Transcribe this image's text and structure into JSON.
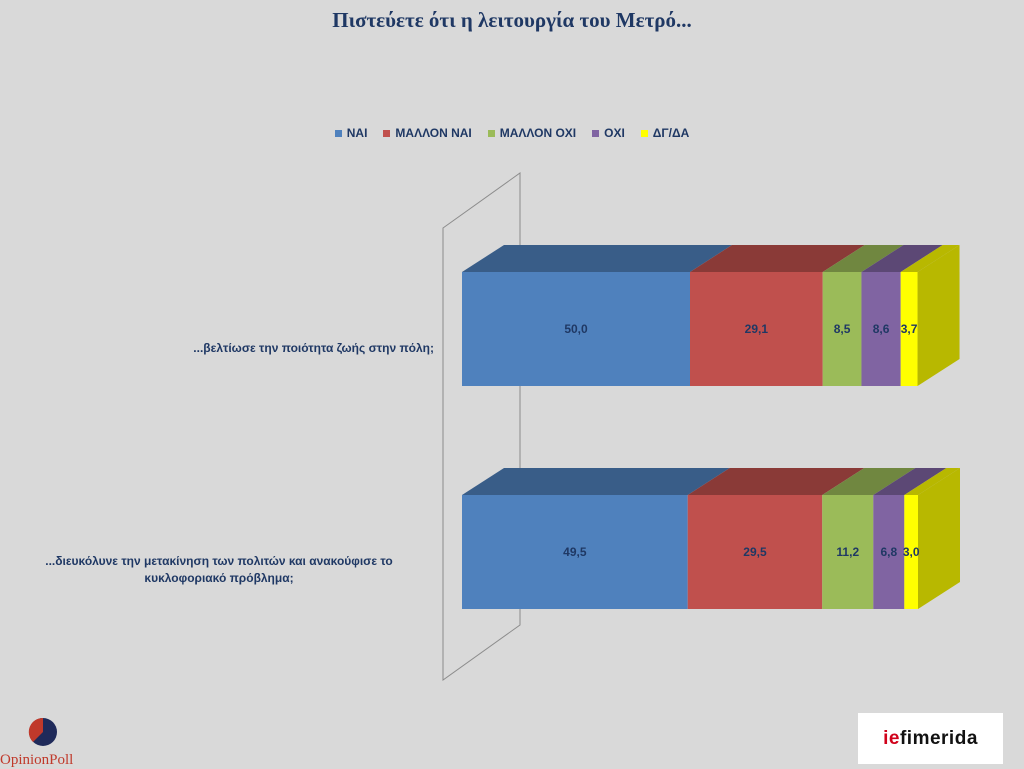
{
  "title": "Πιστεύετε ότι η λειτουργία του Μετρό...",
  "chart_data": {
    "type": "bar",
    "orientation": "horizontal",
    "stacked": true,
    "three_d": true,
    "legend_position": "top",
    "categories": [
      "...βελτίωσε την ποιότητα ζωής στην πόλη;",
      "...διευκόλυνε την μετακίνηση των πολιτών και ανακούφισε το κυκλοφοριακό πρόβλημα;"
    ],
    "series": [
      {
        "name": "ΝΑΙ",
        "color": "#4f81bd",
        "values": [
          50.0,
          49.5
        ],
        "labels": [
          "50,0",
          "49,5"
        ]
      },
      {
        "name": "ΜΑΛΛΟΝ ΝΑΙ",
        "color": "#c0504d",
        "values": [
          29.1,
          29.5
        ],
        "labels": [
          "29,1",
          "29,5"
        ]
      },
      {
        "name": "ΜΑΛΛΟΝ ΟΧΙ",
        "color": "#9bbb59",
        "values": [
          8.5,
          11.2
        ],
        "labels": [
          "8,5",
          "11,2"
        ]
      },
      {
        "name": "ΟΧΙ",
        "color": "#8064a2",
        "values": [
          8.6,
          6.8
        ],
        "labels": [
          "8,6",
          "6,8"
        ]
      },
      {
        "name": "ΔΓ/ΔΑ",
        "color": "#ffff00",
        "values": [
          3.7,
          3.0
        ],
        "labels": [
          "3,7",
          "3,0"
        ]
      }
    ],
    "xlim": [
      0,
      100
    ]
  },
  "logos": {
    "left": "OpinionPoll",
    "right": "iefimerida"
  }
}
